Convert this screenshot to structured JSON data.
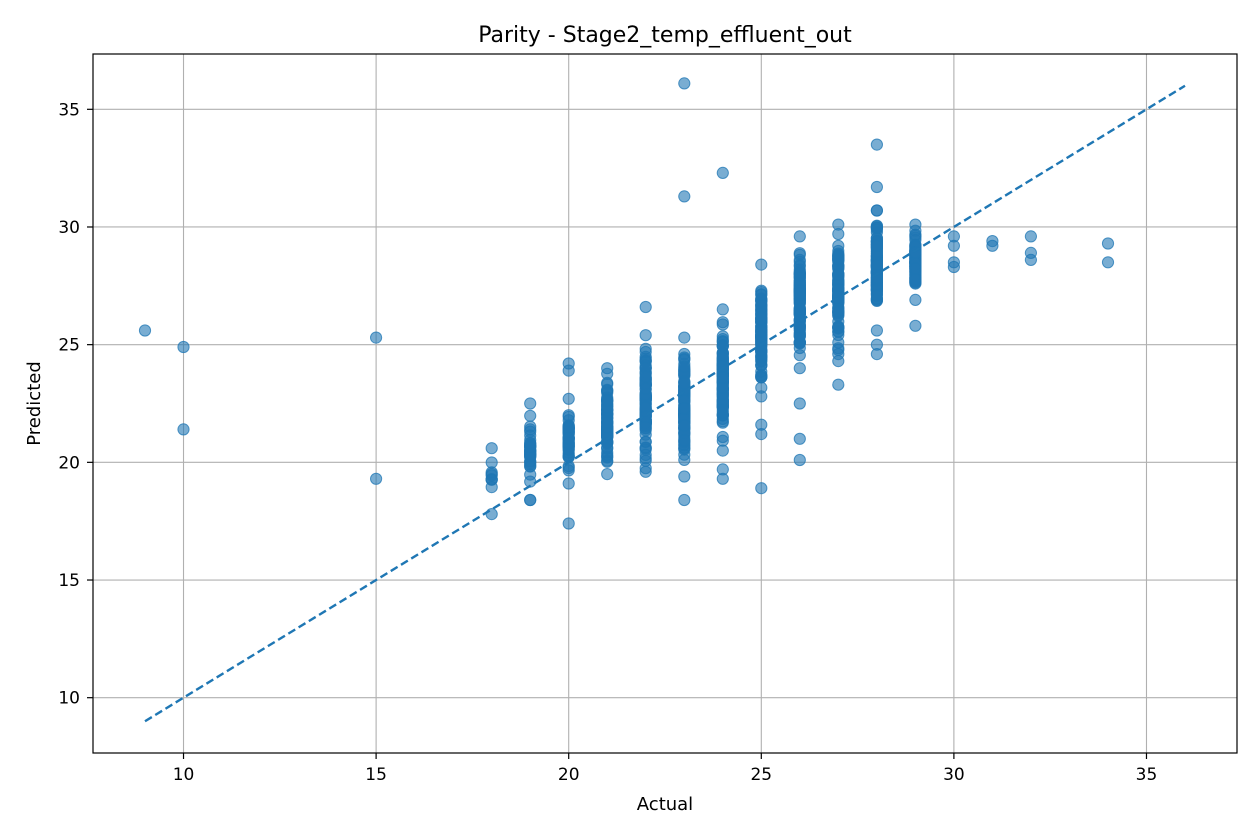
{
  "chart_data": {
    "type": "scatter",
    "title": "Parity - Stage2_temp_effluent_out",
    "xlabel": "Actual",
    "ylabel": "Predicted",
    "xlim": [
      7.65,
      37.35
    ],
    "ylim": [
      7.65,
      37.35
    ],
    "xticks": [
      10,
      15,
      20,
      25,
      30,
      35
    ],
    "yticks": [
      10,
      15,
      20,
      25,
      30,
      35
    ],
    "grid": true,
    "point_color": "#1f77b4",
    "line_color": "#1f77b4",
    "reference_line": {
      "style": "dashed",
      "x": [
        9,
        36
      ],
      "y": [
        9,
        36
      ]
    },
    "clusters": [
      {
        "x": 18,
        "ymin": 17.8,
        "ymax": 20.6,
        "n": 8
      },
      {
        "x": 19,
        "ymin": 18.4,
        "ymax": 22.5,
        "n": 35
      },
      {
        "x": 20,
        "ymin": 19.1,
        "ymax": 22.7,
        "n": 45
      },
      {
        "x": 21,
        "ymin": 19.5,
        "ymax": 24.0,
        "n": 80
      },
      {
        "x": 22,
        "ymin": 19.6,
        "ymax": 25.4,
        "n": 100
      },
      {
        "x": 23,
        "ymin": 19.4,
        "ymax": 25.3,
        "n": 110
      },
      {
        "x": 24,
        "ymin": 20.5,
        "ymax": 26.5,
        "n": 110
      },
      {
        "x": 25,
        "ymin": 22.8,
        "ymax": 28.4,
        "n": 100
      },
      {
        "x": 26,
        "ymin": 24.0,
        "ymax": 29.6,
        "n": 100
      },
      {
        "x": 27,
        "ymin": 24.3,
        "ymax": 30.1,
        "n": 100
      },
      {
        "x": 28,
        "ymin": 25.6,
        "ymax": 30.7,
        "n": 110
      },
      {
        "x": 29,
        "ymin": 26.9,
        "ymax": 30.1,
        "n": 80
      }
    ],
    "points": [
      [
        9,
        25.6
      ],
      [
        10,
        24.9
      ],
      [
        10,
        21.4
      ],
      [
        15,
        25.3
      ],
      [
        15,
        19.3
      ],
      [
        19,
        18.4
      ],
      [
        20,
        17.4
      ],
      [
        20,
        24.2
      ],
      [
        20,
        23.9
      ],
      [
        22,
        26.6
      ],
      [
        23,
        36.1
      ],
      [
        23,
        31.3
      ],
      [
        23,
        18.4
      ],
      [
        24,
        32.3
      ],
      [
        24,
        19.7
      ],
      [
        24,
        19.3
      ],
      [
        25,
        21.6
      ],
      [
        25,
        21.2
      ],
      [
        25,
        18.9
      ],
      [
        26,
        22.5
      ],
      [
        26,
        21.0
      ],
      [
        26,
        20.1
      ],
      [
        27,
        24.6
      ],
      [
        27,
        23.3
      ],
      [
        28,
        33.5
      ],
      [
        28,
        31.7
      ],
      [
        28,
        30.7
      ],
      [
        28,
        25.0
      ],
      [
        28,
        24.6
      ],
      [
        29,
        25.8
      ],
      [
        30,
        29.6
      ],
      [
        30,
        29.2
      ],
      [
        30,
        28.5
      ],
      [
        30,
        28.3
      ],
      [
        31,
        29.4
      ],
      [
        31,
        29.2
      ],
      [
        32,
        29.6
      ],
      [
        32,
        28.9
      ],
      [
        32,
        28.6
      ],
      [
        34,
        29.3
      ],
      [
        34,
        28.5
      ]
    ]
  }
}
